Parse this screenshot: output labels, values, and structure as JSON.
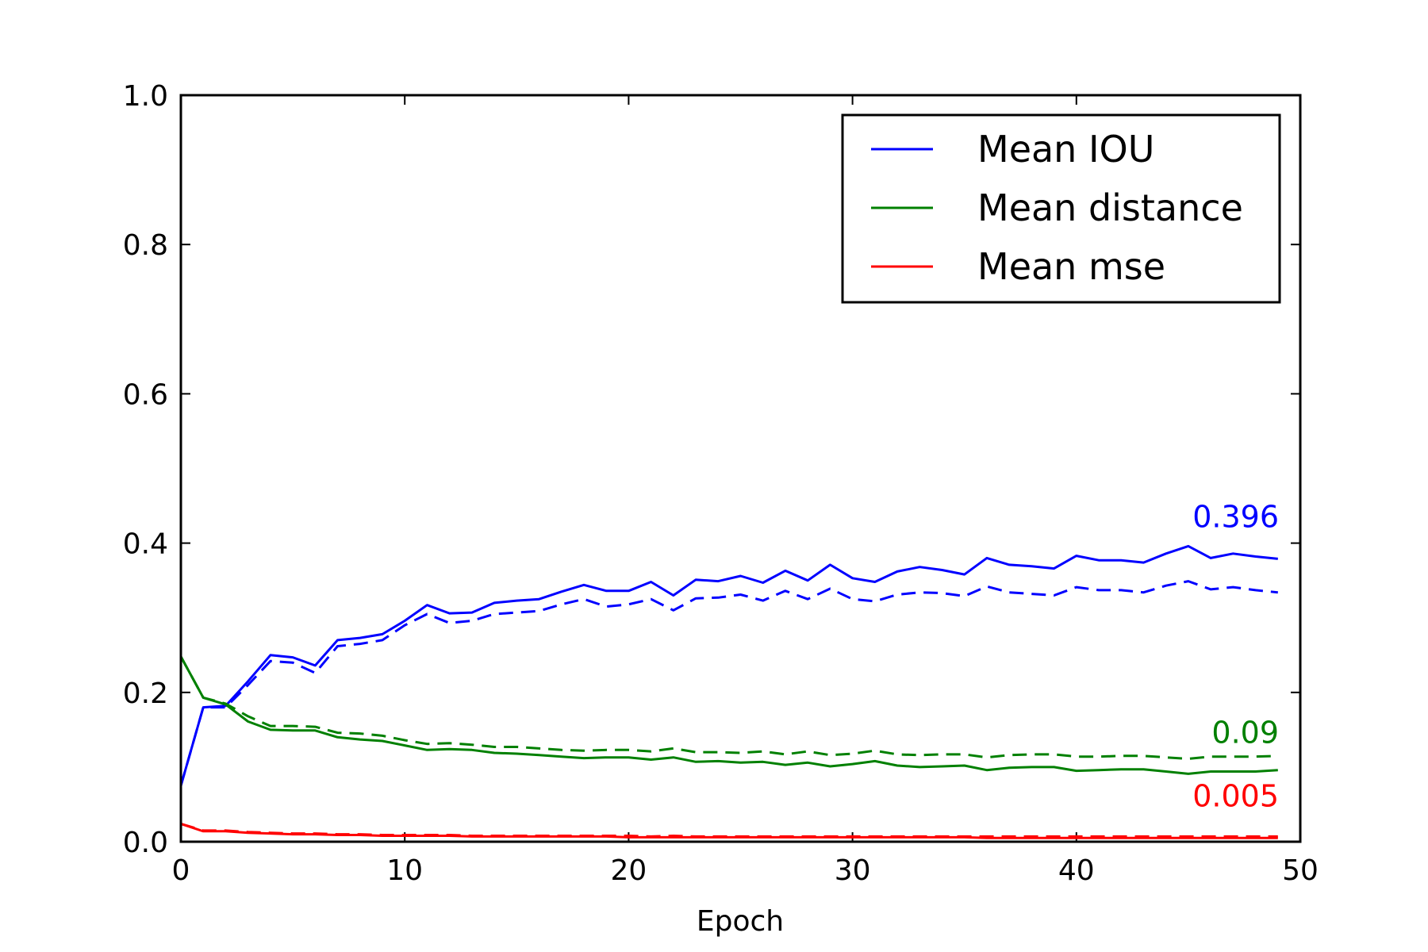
{
  "chart_data": {
    "type": "line",
    "xlabel": "Epoch",
    "ylabel": "",
    "xlim": [
      0,
      50
    ],
    "ylim": [
      0,
      1.0
    ],
    "x_ticks": [
      "0",
      "10",
      "20",
      "30",
      "40",
      "50"
    ],
    "y_ticks": [
      "0.0",
      "0.2",
      "0.4",
      "0.6",
      "0.8",
      "1.0"
    ],
    "grid": false,
    "legend": {
      "placement": "upper-right",
      "entries": [
        "Mean IOU",
        "Mean distance",
        "Mean mse"
      ]
    },
    "series": [
      {
        "name": "Mean IOU",
        "color": "#0000ff",
        "style": "solid",
        "values": [
          0.075,
          0.18,
          0.182,
          0.215,
          0.25,
          0.247,
          0.236,
          0.27,
          0.273,
          0.278,
          0.296,
          0.317,
          0.306,
          0.307,
          0.32,
          0.323,
          0.325,
          0.335,
          0.344,
          0.336,
          0.336,
          0.348,
          0.33,
          0.351,
          0.349,
          0.356,
          0.347,
          0.363,
          0.35,
          0.371,
          0.353,
          0.348,
          0.362,
          0.368,
          0.364,
          0.358,
          0.38,
          0.371,
          0.369,
          0.366,
          0.383,
          0.377,
          0.377,
          0.374,
          0.386,
          0.396,
          0.38,
          0.386,
          0.382,
          0.379
        ]
      },
      {
        "name": "",
        "color": "#0000ff",
        "style": "dashed",
        "values": [
          0.075,
          0.18,
          0.18,
          0.21,
          0.242,
          0.24,
          0.226,
          0.262,
          0.265,
          0.27,
          0.29,
          0.305,
          0.293,
          0.296,
          0.305,
          0.307,
          0.309,
          0.318,
          0.325,
          0.315,
          0.318,
          0.325,
          0.31,
          0.326,
          0.327,
          0.331,
          0.323,
          0.336,
          0.325,
          0.339,
          0.325,
          0.322,
          0.331,
          0.334,
          0.333,
          0.329,
          0.342,
          0.334,
          0.332,
          0.33,
          0.341,
          0.337,
          0.337,
          0.334,
          0.343,
          0.349,
          0.338,
          0.341,
          0.337,
          0.334
        ]
      },
      {
        "name": "Mean distance",
        "color": "#008000",
        "style": "solid",
        "values": [
          0.248,
          0.193,
          0.184,
          0.161,
          0.15,
          0.149,
          0.149,
          0.14,
          0.137,
          0.135,
          0.129,
          0.123,
          0.124,
          0.123,
          0.119,
          0.118,
          0.116,
          0.114,
          0.112,
          0.113,
          0.113,
          0.11,
          0.113,
          0.107,
          0.108,
          0.106,
          0.107,
          0.103,
          0.106,
          0.101,
          0.104,
          0.108,
          0.102,
          0.1,
          0.101,
          0.102,
          0.096,
          0.099,
          0.1,
          0.1,
          0.095,
          0.096,
          0.097,
          0.097,
          0.094,
          0.091,
          0.094,
          0.094,
          0.094,
          0.096
        ]
      },
      {
        "name": "",
        "color": "#008000",
        "style": "dashed",
        "values": [
          0.248,
          0.193,
          0.185,
          0.168,
          0.155,
          0.155,
          0.154,
          0.146,
          0.145,
          0.142,
          0.136,
          0.131,
          0.132,
          0.13,
          0.127,
          0.127,
          0.125,
          0.123,
          0.122,
          0.123,
          0.123,
          0.121,
          0.125,
          0.12,
          0.12,
          0.119,
          0.121,
          0.117,
          0.121,
          0.116,
          0.118,
          0.122,
          0.117,
          0.116,
          0.117,
          0.117,
          0.113,
          0.116,
          0.117,
          0.117,
          0.114,
          0.114,
          0.115,
          0.115,
          0.113,
          0.111,
          0.114,
          0.114,
          0.114,
          0.115
        ]
      },
      {
        "name": "Mean mse",
        "color": "#ff0000",
        "style": "solid",
        "values": [
          0.024,
          0.014,
          0.014,
          0.012,
          0.011,
          0.01,
          0.01,
          0.009,
          0.009,
          0.008,
          0.008,
          0.008,
          0.008,
          0.007,
          0.007,
          0.007,
          0.007,
          0.007,
          0.007,
          0.007,
          0.006,
          0.006,
          0.006,
          0.006,
          0.006,
          0.006,
          0.006,
          0.006,
          0.006,
          0.006,
          0.006,
          0.006,
          0.006,
          0.006,
          0.006,
          0.006,
          0.005,
          0.005,
          0.005,
          0.005,
          0.005,
          0.005,
          0.005,
          0.005,
          0.005,
          0.005,
          0.005,
          0.005,
          0.005,
          0.005
        ]
      },
      {
        "name": "",
        "color": "#ff0000",
        "style": "dashed",
        "values": [
          0.024,
          0.015,
          0.015,
          0.013,
          0.012,
          0.011,
          0.011,
          0.01,
          0.01,
          0.009,
          0.009,
          0.009,
          0.009,
          0.008,
          0.008,
          0.008,
          0.008,
          0.008,
          0.008,
          0.008,
          0.008,
          0.007,
          0.008,
          0.007,
          0.007,
          0.007,
          0.007,
          0.007,
          0.007,
          0.007,
          0.007,
          0.007,
          0.007,
          0.007,
          0.007,
          0.007,
          0.007,
          0.007,
          0.007,
          0.007,
          0.007,
          0.007,
          0.007,
          0.007,
          0.007,
          0.007,
          0.007,
          0.007,
          0.007,
          0.007
        ]
      }
    ],
    "annotations": [
      {
        "text": "0.396",
        "color": "#0000ff",
        "x": 49,
        "y": 0.396
      },
      {
        "text": "0.09",
        "color": "#008000",
        "x": 49,
        "y": 0.09
      },
      {
        "text": "0.005",
        "color": "#ff0000",
        "x": 49,
        "y": 0.005
      }
    ]
  }
}
